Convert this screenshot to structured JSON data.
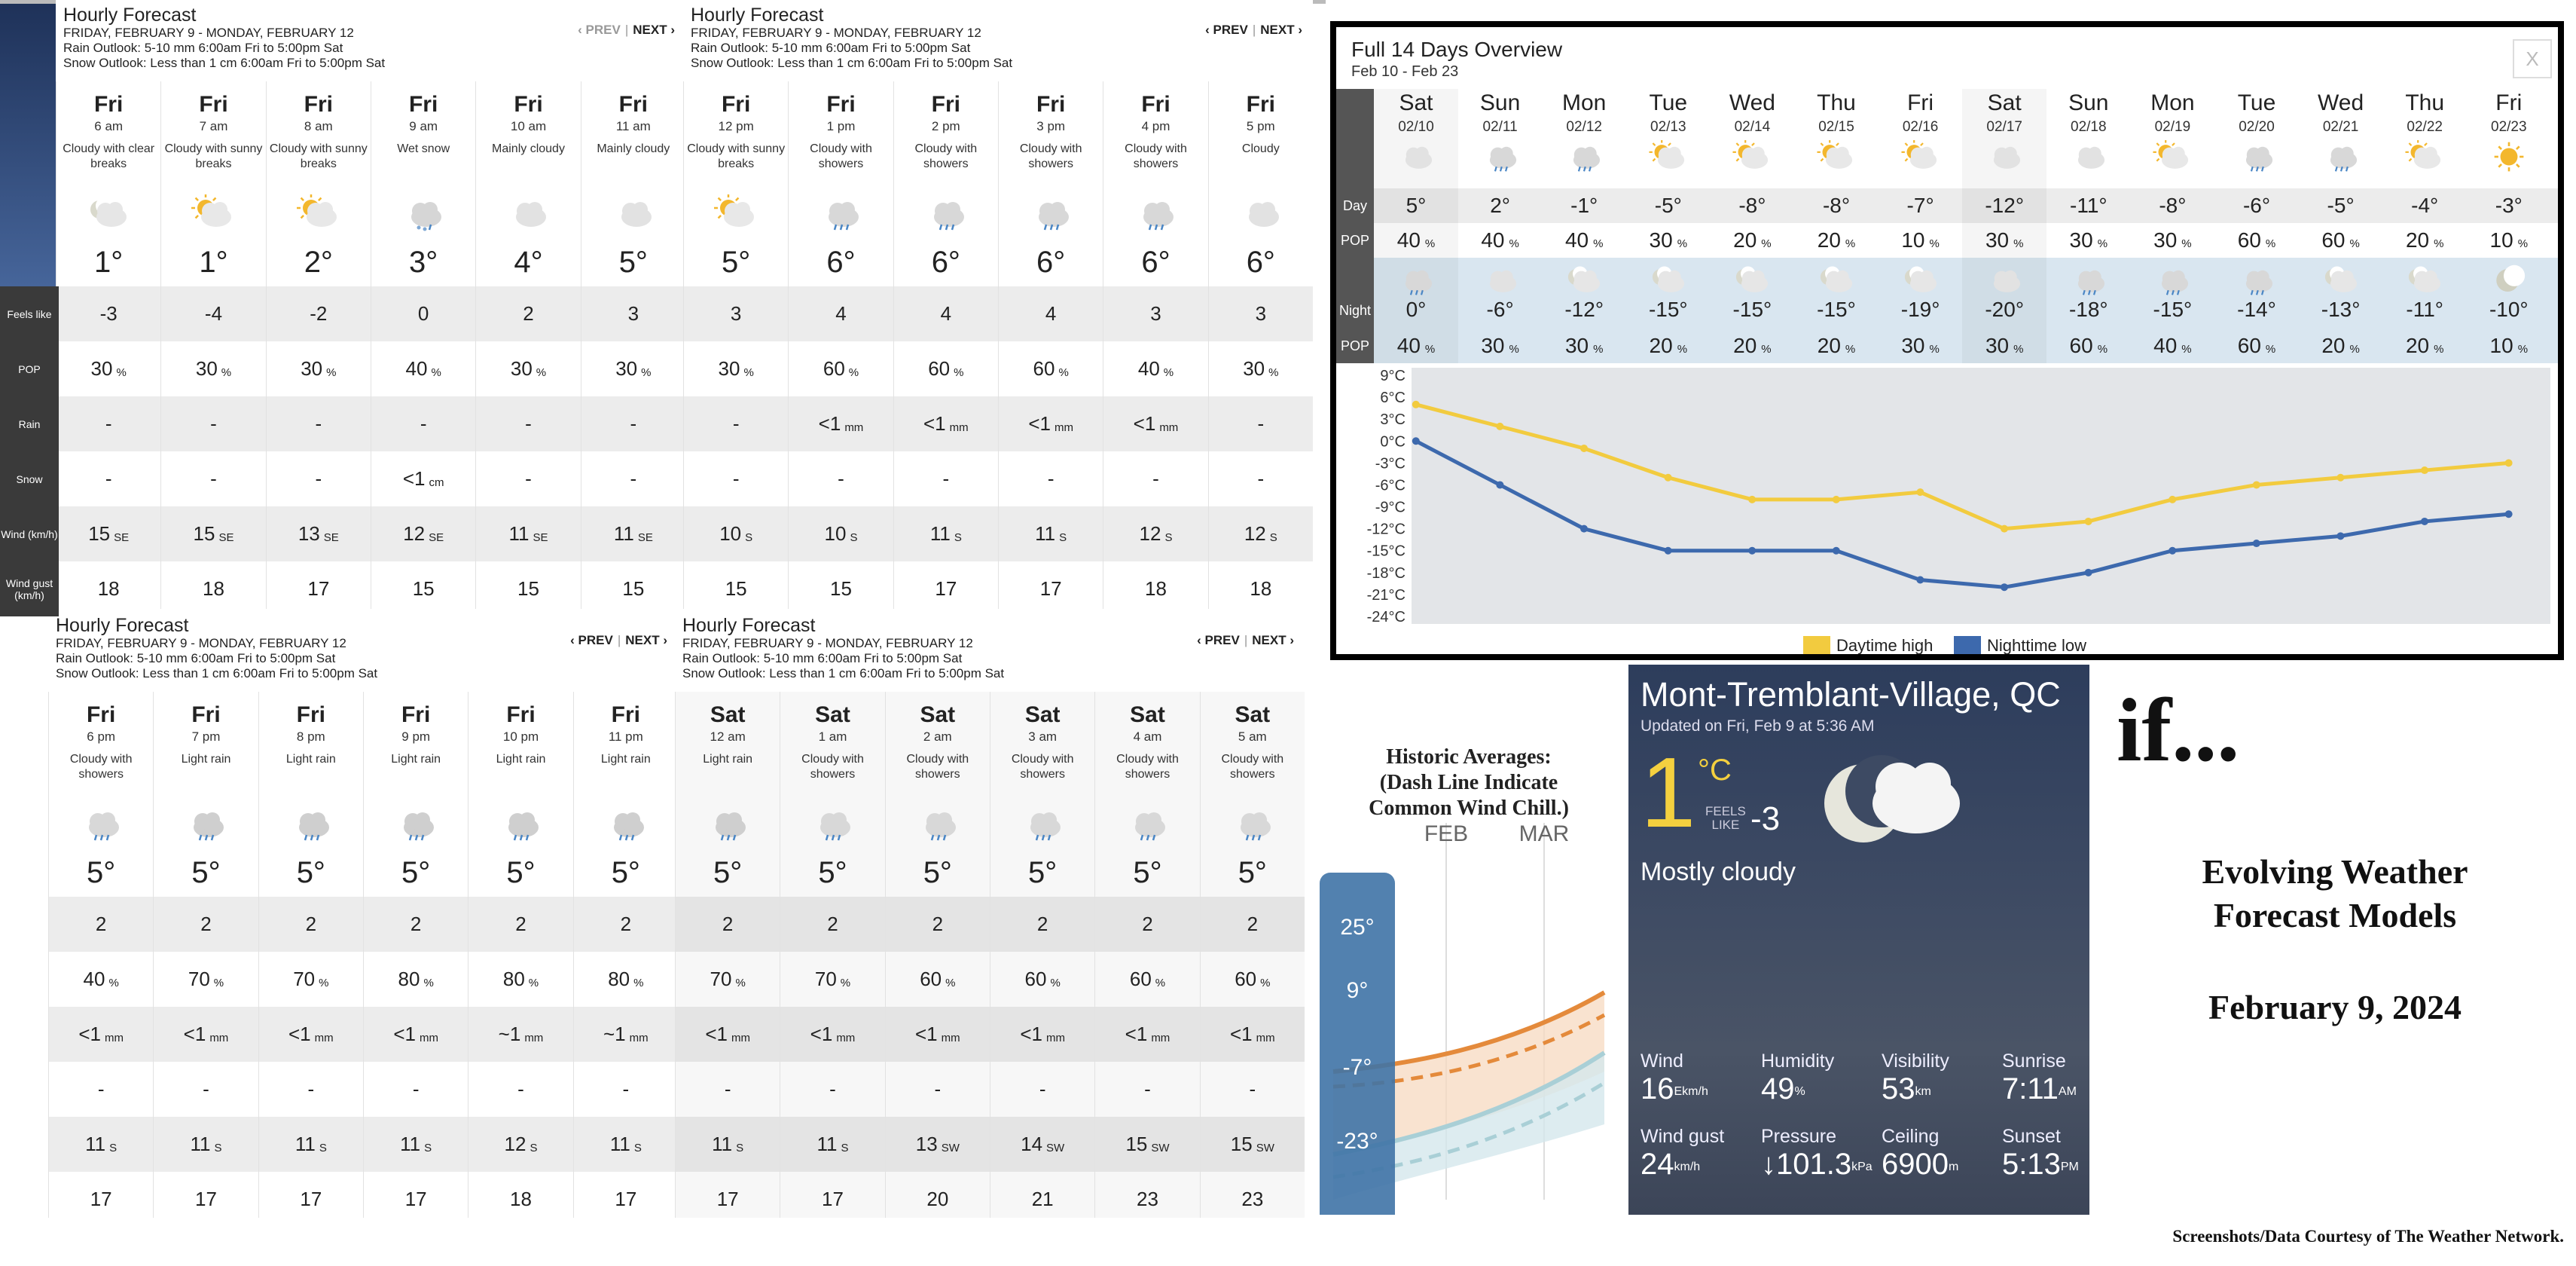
{
  "panels": [
    {
      "title": "Hourly Forecast",
      "date_range": "FRIDAY, FEBRUARY 9 - MONDAY, FEBRUARY 12",
      "rain": "Rain Outlook: 5-10 mm 6:00am Fri to 5:00pm Sat",
      "snow": "Snow Outlook: Less than 1 cm 6:00am Fri to 5:00pm Sat",
      "prev": "‹ PREV",
      "next": "NEXT ›",
      "prev_disabled": true,
      "cols": [
        {
          "day": "Fri",
          "hour": "6 am",
          "cond": "Cloudy with clear breaks",
          "icon": "night-partly-cloudy-icon",
          "temp": "1°",
          "feels": "-3",
          "pop": "30",
          "rain": "-",
          "snow": "-",
          "wind": "15",
          "dir": "SE",
          "gust": "18"
        },
        {
          "day": "Fri",
          "hour": "7 am",
          "cond": "Cloudy with sunny breaks",
          "icon": "sun-cloud-icon",
          "temp": "1°",
          "feels": "-4",
          "pop": "30",
          "rain": "-",
          "snow": "-",
          "wind": "15",
          "dir": "SE",
          "gust": "18"
        },
        {
          "day": "Fri",
          "hour": "8 am",
          "cond": "Cloudy with sunny breaks",
          "icon": "sun-cloud-icon",
          "temp": "2°",
          "feels": "-2",
          "pop": "30",
          "rain": "-",
          "snow": "-",
          "wind": "13",
          "dir": "SE",
          "gust": "17"
        },
        {
          "day": "Fri",
          "hour": "9 am",
          "cond": "Wet snow",
          "icon": "wet-snow-icon",
          "temp": "3°",
          "feels": "0",
          "pop": "40",
          "rain": "-",
          "snow": "<1",
          "snowunit": "cm",
          "wind": "12",
          "dir": "SE",
          "gust": "15"
        },
        {
          "day": "Fri",
          "hour": "10 am",
          "cond": "Mainly cloudy",
          "icon": "cloud-icon",
          "temp": "4°",
          "feels": "2",
          "pop": "30",
          "rain": "-",
          "snow": "-",
          "wind": "11",
          "dir": "SE",
          "gust": "15"
        },
        {
          "day": "Fri",
          "hour": "11 am",
          "cond": "Mainly cloudy",
          "icon": "cloud-icon",
          "temp": "5°",
          "feels": "3",
          "pop": "30",
          "rain": "-",
          "snow": "-",
          "wind": "11",
          "dir": "SE",
          "gust": "15"
        }
      ]
    },
    {
      "title": "Hourly Forecast",
      "date_range": "FRIDAY, FEBRUARY 9 - MONDAY, FEBRUARY 12",
      "rain": "Rain Outlook: 5-10 mm 6:00am Fri to 5:00pm Sat",
      "snow": "Snow Outlook: Less than 1 cm 6:00am Fri to 5:00pm Sat",
      "prev": "‹ PREV",
      "next": "NEXT ›",
      "prev_disabled": false,
      "cols": [
        {
          "day": "Fri",
          "hour": "12 pm",
          "cond": "Cloudy with sunny breaks",
          "icon": "sun-cloud-icon",
          "temp": "5°",
          "feels": "3",
          "pop": "30",
          "rain": "-",
          "snow": "-",
          "wind": "10",
          "dir": "S",
          "gust": "15"
        },
        {
          "day": "Fri",
          "hour": "1 pm",
          "cond": "Cloudy with showers",
          "icon": "showers-icon",
          "temp": "6°",
          "feels": "4",
          "pop": "60",
          "rain": "<1",
          "rainunit": "mm",
          "snow": "-",
          "wind": "10",
          "dir": "S",
          "gust": "15"
        },
        {
          "day": "Fri",
          "hour": "2 pm",
          "cond": "Cloudy with showers",
          "icon": "showers-icon",
          "temp": "6°",
          "feels": "4",
          "pop": "60",
          "rain": "<1",
          "rainunit": "mm",
          "snow": "-",
          "wind": "11",
          "dir": "S",
          "gust": "17"
        },
        {
          "day": "Fri",
          "hour": "3 pm",
          "cond": "Cloudy with showers",
          "icon": "showers-icon",
          "temp": "6°",
          "feels": "4",
          "pop": "60",
          "rain": "<1",
          "rainunit": "mm",
          "snow": "-",
          "wind": "11",
          "dir": "S",
          "gust": "17"
        },
        {
          "day": "Fri",
          "hour": "4 pm",
          "cond": "Cloudy with showers",
          "icon": "showers-icon",
          "temp": "6°",
          "feels": "3",
          "pop": "40",
          "rain": "<1",
          "rainunit": "mm",
          "snow": "-",
          "wind": "12",
          "dir": "S",
          "gust": "18"
        },
        {
          "day": "Fri",
          "hour": "5 pm",
          "cond": "Cloudy",
          "icon": "cloud-icon",
          "temp": "6°",
          "feels": "3",
          "pop": "30",
          "rain": "-",
          "snow": "-",
          "wind": "12",
          "dir": "S",
          "gust": "18"
        }
      ]
    },
    {
      "title": "Hourly Forecast",
      "date_range": "FRIDAY, FEBRUARY 9 - MONDAY, FEBRUARY 12",
      "rain": "Rain Outlook: 5-10 mm 6:00am Fri to 5:00pm Sat",
      "snow": "Snow Outlook: Less than 1 cm 6:00am Fri to 5:00pm Sat",
      "prev": "‹ PREV",
      "next": "NEXT ›",
      "prev_disabled": false,
      "cols": [
        {
          "day": "Fri",
          "hour": "6 pm",
          "cond": "Cloudy with showers",
          "icon": "showers-icon",
          "temp": "5°",
          "feels": "2",
          "pop": "40",
          "rain": "<1",
          "rainunit": "mm",
          "snow": "-",
          "wind": "11",
          "dir": "S",
          "gust": "17"
        },
        {
          "day": "Fri",
          "hour": "7 pm",
          "cond": "Light rain",
          "icon": "rain-icon",
          "temp": "5°",
          "feels": "2",
          "pop": "70",
          "rain": "<1",
          "rainunit": "mm",
          "snow": "-",
          "wind": "11",
          "dir": "S",
          "gust": "17"
        },
        {
          "day": "Fri",
          "hour": "8 pm",
          "cond": "Light rain",
          "icon": "rain-icon",
          "temp": "5°",
          "feels": "2",
          "pop": "70",
          "rain": "<1",
          "rainunit": "mm",
          "snow": "-",
          "wind": "11",
          "dir": "S",
          "gust": "17"
        },
        {
          "day": "Fri",
          "hour": "9 pm",
          "cond": "Light rain",
          "icon": "rain-icon",
          "temp": "5°",
          "feels": "2",
          "pop": "80",
          "rain": "<1",
          "rainunit": "mm",
          "snow": "-",
          "wind": "11",
          "dir": "S",
          "gust": "17"
        },
        {
          "day": "Fri",
          "hour": "10 pm",
          "cond": "Light rain",
          "icon": "rain-icon",
          "temp": "5°",
          "feels": "2",
          "pop": "80",
          "rain": "~1",
          "rainunit": "mm",
          "snow": "-",
          "wind": "12",
          "dir": "S",
          "gust": "18"
        },
        {
          "day": "Fri",
          "hour": "11 pm",
          "cond": "Light rain",
          "icon": "rain-icon",
          "temp": "5°",
          "feels": "2",
          "pop": "80",
          "rain": "~1",
          "rainunit": "mm",
          "snow": "-",
          "wind": "11",
          "dir": "S",
          "gust": "17"
        }
      ]
    },
    {
      "title": "Hourly Forecast",
      "date_range": "FRIDAY, FEBRUARY 9 - MONDAY, FEBRUARY 12",
      "rain": "Rain Outlook: 5-10 mm 6:00am Fri to 5:00pm Sat",
      "snow": "Snow Outlook: Less than 1 cm 6:00am Fri to 5:00pm Sat",
      "prev": "‹ PREV",
      "next": "NEXT ›",
      "prev_disabled": false,
      "cols": [
        {
          "day": "Sat",
          "hour": "12 am",
          "cond": "Light rain",
          "icon": "rain-icon",
          "temp": "5°",
          "feels": "2",
          "pop": "70",
          "rain": "<1",
          "rainunit": "mm",
          "snow": "-",
          "wind": "11",
          "dir": "S",
          "gust": "17"
        },
        {
          "day": "Sat",
          "hour": "1 am",
          "cond": "Cloudy with showers",
          "icon": "showers-icon",
          "temp": "5°",
          "feels": "2",
          "pop": "70",
          "rain": "<1",
          "rainunit": "mm",
          "snow": "-",
          "wind": "11",
          "dir": "S",
          "gust": "17"
        },
        {
          "day": "Sat",
          "hour": "2 am",
          "cond": "Cloudy with showers",
          "icon": "showers-icon",
          "temp": "5°",
          "feels": "2",
          "pop": "60",
          "rain": "<1",
          "rainunit": "mm",
          "snow": "-",
          "wind": "13",
          "dir": "SW",
          "gust": "20"
        },
        {
          "day": "Sat",
          "hour": "3 am",
          "cond": "Cloudy with showers",
          "icon": "showers-icon",
          "temp": "5°",
          "feels": "2",
          "pop": "60",
          "rain": "<1",
          "rainunit": "mm",
          "snow": "-",
          "wind": "14",
          "dir": "SW",
          "gust": "21"
        },
        {
          "day": "Sat",
          "hour": "4 am",
          "cond": "Cloudy with showers",
          "icon": "showers-icon",
          "temp": "5°",
          "feels": "2",
          "pop": "60",
          "rain": "<1",
          "rainunit": "mm",
          "snow": "-",
          "wind": "15",
          "dir": "SW",
          "gust": "23"
        },
        {
          "day": "Sat",
          "hour": "5 am",
          "cond": "Cloudy with showers",
          "icon": "showers-icon",
          "temp": "5°",
          "feels": "2",
          "pop": "60",
          "rain": "<1",
          "rainunit": "mm",
          "snow": "-",
          "wind": "15",
          "dir": "SW",
          "gust": "23"
        }
      ]
    }
  ],
  "row_labels": {
    "feels": "Feels like",
    "pop": "POP",
    "rain": "Rain",
    "snow": "Snow",
    "wind": "Wind (km/h)",
    "gust": "Wind gust (km/h)"
  },
  "pop_unit": "%",
  "overview": {
    "title": "Full 14 Days Overview",
    "range": "Feb 10 - Feb 23",
    "close": "X",
    "day_label": "Day",
    "night_label": "Night",
    "pop_label": "POP",
    "days": [
      {
        "d": "Sat",
        "dt": "02/10",
        "hi": "5°",
        "hpop": "40",
        "lo": "0°",
        "lpop": "40",
        "di": "cloud-icon",
        "ni": "showers-icon"
      },
      {
        "d": "Sun",
        "dt": "02/11",
        "hi": "2°",
        "hpop": "40",
        "lo": "-6°",
        "lpop": "30",
        "di": "showers-icon",
        "ni": "cloud-icon"
      },
      {
        "d": "Mon",
        "dt": "02/12",
        "hi": "-1°",
        "hpop": "40",
        "lo": "-12°",
        "lpop": "30",
        "di": "showers-icon",
        "ni": "night-partly-cloudy-icon"
      },
      {
        "d": "Tue",
        "dt": "02/13",
        "hi": "-5°",
        "hpop": "30",
        "lo": "-15°",
        "lpop": "20",
        "di": "sun-cloud-icon",
        "ni": "night-partly-cloudy-icon"
      },
      {
        "d": "Wed",
        "dt": "02/14",
        "hi": "-8°",
        "hpop": "20",
        "lo": "-15°",
        "lpop": "20",
        "di": "sun-cloud-icon",
        "ni": "night-partly-cloudy-icon"
      },
      {
        "d": "Thu",
        "dt": "02/15",
        "hi": "-8°",
        "hpop": "20",
        "lo": "-15°",
        "lpop": "20",
        "di": "sun-cloud-icon",
        "ni": "night-partly-cloudy-icon"
      },
      {
        "d": "Fri",
        "dt": "02/16",
        "hi": "-7°",
        "hpop": "10",
        "lo": "-19°",
        "lpop": "30",
        "di": "sun-cloud-icon",
        "ni": "night-partly-cloudy-icon"
      },
      {
        "d": "Sat",
        "dt": "02/17",
        "hi": "-12°",
        "hpop": "30",
        "lo": "-20°",
        "lpop": "30",
        "di": "cloud-icon",
        "ni": "cloud-icon"
      },
      {
        "d": "Sun",
        "dt": "02/18",
        "hi": "-11°",
        "hpop": "30",
        "lo": "-18°",
        "lpop": "60",
        "di": "cloud-icon",
        "ni": "showers-icon"
      },
      {
        "d": "Mon",
        "dt": "02/19",
        "hi": "-8°",
        "hpop": "30",
        "lo": "-15°",
        "lpop": "40",
        "di": "sun-cloud-icon",
        "ni": "showers-icon"
      },
      {
        "d": "Tue",
        "dt": "02/20",
        "hi": "-6°",
        "hpop": "60",
        "lo": "-14°",
        "lpop": "60",
        "di": "showers-icon",
        "ni": "showers-icon"
      },
      {
        "d": "Wed",
        "dt": "02/21",
        "hi": "-5°",
        "hpop": "60",
        "lo": "-13°",
        "lpop": "20",
        "di": "showers-icon",
        "ni": "night-partly-cloudy-icon"
      },
      {
        "d": "Thu",
        "dt": "02/22",
        "hi": "-4°",
        "hpop": "20",
        "lo": "-11°",
        "lpop": "20",
        "di": "sun-cloud-icon",
        "ni": "night-partly-cloudy-icon"
      },
      {
        "d": "Fri",
        "dt": "02/23",
        "hi": "-3°",
        "hpop": "10",
        "lo": "-10°",
        "lpop": "10",
        "di": "sun-icon",
        "ni": "moon-icon"
      }
    ]
  },
  "chart_data": [
    {
      "type": "line",
      "x": [
        "02/10",
        "02/11",
        "02/12",
        "02/13",
        "02/14",
        "02/15",
        "02/16",
        "02/17",
        "02/18",
        "02/19",
        "02/20",
        "02/21",
        "02/22",
        "02/23"
      ],
      "series": [
        {
          "name": "Daytime high",
          "color": "#f2cb3f",
          "values": [
            5,
            2,
            -1,
            -5,
            -8,
            -8,
            -7,
            -12,
            -11,
            -8,
            -6,
            -5,
            -4,
            -3
          ]
        },
        {
          "name": "Nighttime low",
          "color": "#3d69ad",
          "values": [
            0,
            -6,
            -12,
            -15,
            -15,
            -15,
            -19,
            -20,
            -18,
            -15,
            -14,
            -13,
            -11,
            -10
          ]
        }
      ],
      "yticks": [
        "9°C",
        "6°C",
        "3°C",
        "0°C",
        "-3°C",
        "-6°C",
        "-9°C",
        "-12°C",
        "-15°C",
        "-18°C",
        "-21°C",
        "-24°C"
      ],
      "ylim": [
        -24,
        9
      ],
      "legend": "bottom",
      "grid": false
    },
    {
      "type": "line",
      "title": "Historic Averages:\n(Dash Line Indicate\nCommon Wind Chill.)",
      "categories": [
        "FEB",
        "MAR"
      ],
      "scale_labels": [
        "25°",
        "9°",
        "-7°",
        "-23°"
      ]
    }
  ],
  "historic": {
    "title": "Historic Averages:",
    "sub1": "(Dash Line Indicate",
    "sub2": "Common Wind Chill.)",
    "feb": "FEB",
    "mar": "MAR",
    "scale": [
      "25°",
      "9°",
      "-7°",
      "-23°"
    ]
  },
  "current": {
    "location": "Mont-Tremblant-Village, QC",
    "updated": "Updated on Fri, Feb 9 at 5:36 AM",
    "temp": "1",
    "unit": "°C",
    "feels_label1": "FEELS",
    "feels_label2": "LIKE",
    "feels": "-3",
    "desc": "Mostly cloudy",
    "stats": [
      {
        "label": "Wind",
        "value": "16",
        "sup": "E",
        "sub": "km/h"
      },
      {
        "label": "Humidity",
        "value": "49",
        "sup": "%",
        "sub": ""
      },
      {
        "label": "Visibility",
        "value": "53",
        "sup": "km",
        "sub": ""
      },
      {
        "label": "Sunrise",
        "value": "7:11",
        "sup": "AM",
        "sub": ""
      },
      {
        "label": "Wind gust",
        "value": "24",
        "sup": "km/h",
        "sub": ""
      },
      {
        "label": "Pressure",
        "value": "↓101.3",
        "sup": "kPa",
        "sub": ""
      },
      {
        "label": "Ceiling",
        "value": "6900",
        "sup": "m",
        "sub": ""
      },
      {
        "label": "Sunset",
        "value": "5:13",
        "sup": "PM",
        "sub": ""
      }
    ]
  },
  "side": {
    "if": "if...",
    "line1": "Evolving Weather",
    "line2": "Forecast Models",
    "date": "February 9, 2024",
    "credit": "Screenshots/Data Courtesy of The Weather Network."
  },
  "colors": {
    "day_high": "#f2cb3f",
    "night_low": "#3d69ad",
    "current_temp": "#f4d03f"
  }
}
